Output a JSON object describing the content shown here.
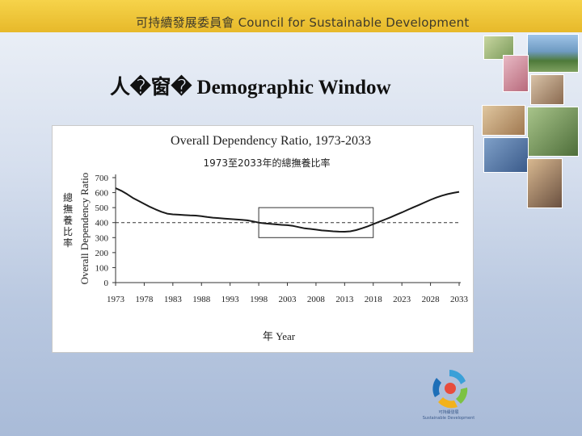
{
  "header": {
    "banner_text": "可持續發展委員會 Council for Sustainable Development"
  },
  "slide": {
    "title": "人�窗� Demographic Window"
  },
  "y_label_cn": "總撫養比率",
  "logo": {
    "caption_cn": "可持續發展",
    "caption_en": "Sustainable Development"
  },
  "chart_data": {
    "type": "line",
    "title": "Overall Dependency Ratio, 1973-2033",
    "subtitle": "1973至2033年的總撫養比率",
    "xlabel": "年 Year",
    "ylabel": "Overall Dependency Ratio",
    "ylim": [
      0,
      700
    ],
    "yticks": [
      0,
      100,
      200,
      300,
      400,
      500,
      600,
      700
    ],
    "xlim": [
      1973,
      2033
    ],
    "xticks": [
      1973,
      1978,
      1983,
      1988,
      1993,
      1998,
      2003,
      2008,
      2013,
      2018,
      2023,
      2028,
      2033
    ],
    "reference_line": 400,
    "highlight_window": {
      "x_start": 1998,
      "x_end": 2018,
      "y_low": 300,
      "y_high": 500
    },
    "series": [
      {
        "name": "Overall Dependency Ratio",
        "x": [
          1973,
          1974,
          1975,
          1976,
          1977,
          1978,
          1979,
          1980,
          1981,
          1982,
          1983,
          1984,
          1985,
          1986,
          1987,
          1988,
          1989,
          1990,
          1991,
          1992,
          1993,
          1994,
          1995,
          1996,
          1997,
          1998,
          1999,
          2000,
          2001,
          2002,
          2003,
          2004,
          2005,
          2006,
          2007,
          2008,
          2009,
          2010,
          2011,
          2012,
          2013,
          2014,
          2015,
          2016,
          2017,
          2018,
          2019,
          2020,
          2021,
          2022,
          2023,
          2024,
          2025,
          2026,
          2027,
          2028,
          2029,
          2030,
          2031,
          2032,
          2033
        ],
        "values": [
          630,
          612,
          590,
          565,
          545,
          525,
          505,
          488,
          472,
          460,
          455,
          453,
          450,
          448,
          447,
          443,
          437,
          433,
          430,
          427,
          424,
          421,
          419,
          415,
          408,
          400,
          395,
          392,
          388,
          385,
          383,
          378,
          370,
          362,
          358,
          353,
          348,
          345,
          342,
          340,
          339,
          342,
          350,
          362,
          375,
          390,
          405,
          420,
          435,
          452,
          468,
          485,
          502,
          518,
          535,
          552,
          567,
          580,
          590,
          598,
          605
        ]
      }
    ]
  }
}
